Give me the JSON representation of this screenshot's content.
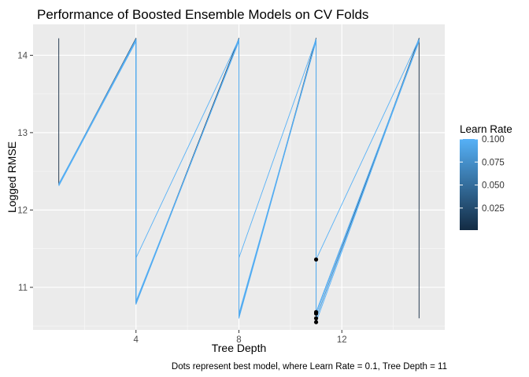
{
  "chart_data": {
    "type": "line",
    "title": "Performance of Boosted Ensemble Models on CV Folds",
    "xlabel": "Tree Depth",
    "ylabel": "Logged RMSE",
    "caption": "Dots represent best model, where Learn Rate = 0.1, Tree Depth = 11",
    "xlim": [
      0,
      16
    ],
    "ylim": [
      10.45,
      14.4
    ],
    "x_ticks": [
      4,
      8,
      12
    ],
    "y_ticks": [
      11,
      12,
      13,
      14
    ],
    "grid": true,
    "legend": {
      "title": "Learn Rate",
      "position": "right",
      "ticks": [
        0.025,
        0.05,
        0.075,
        0.1
      ],
      "tick_labels": [
        "0.025",
        "0.050",
        "0.075",
        "0.100"
      ],
      "range": [
        0.001,
        0.1
      ],
      "color_low": "#132B43",
      "color_high": "#56B1F7"
    },
    "series": [
      {
        "learn_rate": 0.001,
        "x": [
          1,
          1,
          4,
          4,
          8,
          8,
          11,
          11,
          15,
          15
        ],
        "y": [
          14.22,
          12.33,
          14.22,
          10.8,
          14.22,
          10.62,
          14.22,
          10.6,
          14.22,
          10.6
        ]
      },
      {
        "learn_rate": 0.1,
        "x": [
          1,
          4,
          4,
          8,
          8,
          11,
          11,
          15
        ],
        "y": [
          12.33,
          14.2,
          10.78,
          14.2,
          10.6,
          14.2,
          10.55,
          14.2
        ]
      },
      {
        "learn_rate": 0.1,
        "x": [
          1,
          4,
          4,
          8,
          8,
          11,
          11,
          15
        ],
        "y": [
          12.31,
          14.18,
          10.82,
          14.18,
          10.64,
          14.18,
          10.6,
          14.18
        ]
      },
      {
        "learn_rate": 0.1,
        "x": [
          1,
          4,
          4,
          8,
          8,
          11,
          11,
          15
        ],
        "y": [
          12.32,
          14.2,
          10.8,
          14.2,
          10.66,
          14.2,
          10.65,
          14.2
        ]
      },
      {
        "learn_rate": 0.1,
        "x": [
          1,
          4,
          4,
          8,
          8,
          11,
          11,
          15
        ],
        "y": [
          12.33,
          14.21,
          11.38,
          14.21,
          11.38,
          14.21,
          11.36,
          14.21
        ]
      },
      {
        "learn_rate": 0.095,
        "x": [
          1,
          4,
          4,
          8,
          8,
          11,
          11,
          15
        ],
        "y": [
          12.34,
          14.19,
          10.79,
          14.19,
          10.63,
          14.19,
          10.68,
          14.19
        ]
      }
    ],
    "points": {
      "x": [
        11,
        11,
        11,
        11,
        11,
        11
      ],
      "y": [
        11.36,
        10.68,
        10.67,
        10.66,
        10.6,
        10.55
      ],
      "color": "#000000"
    }
  }
}
